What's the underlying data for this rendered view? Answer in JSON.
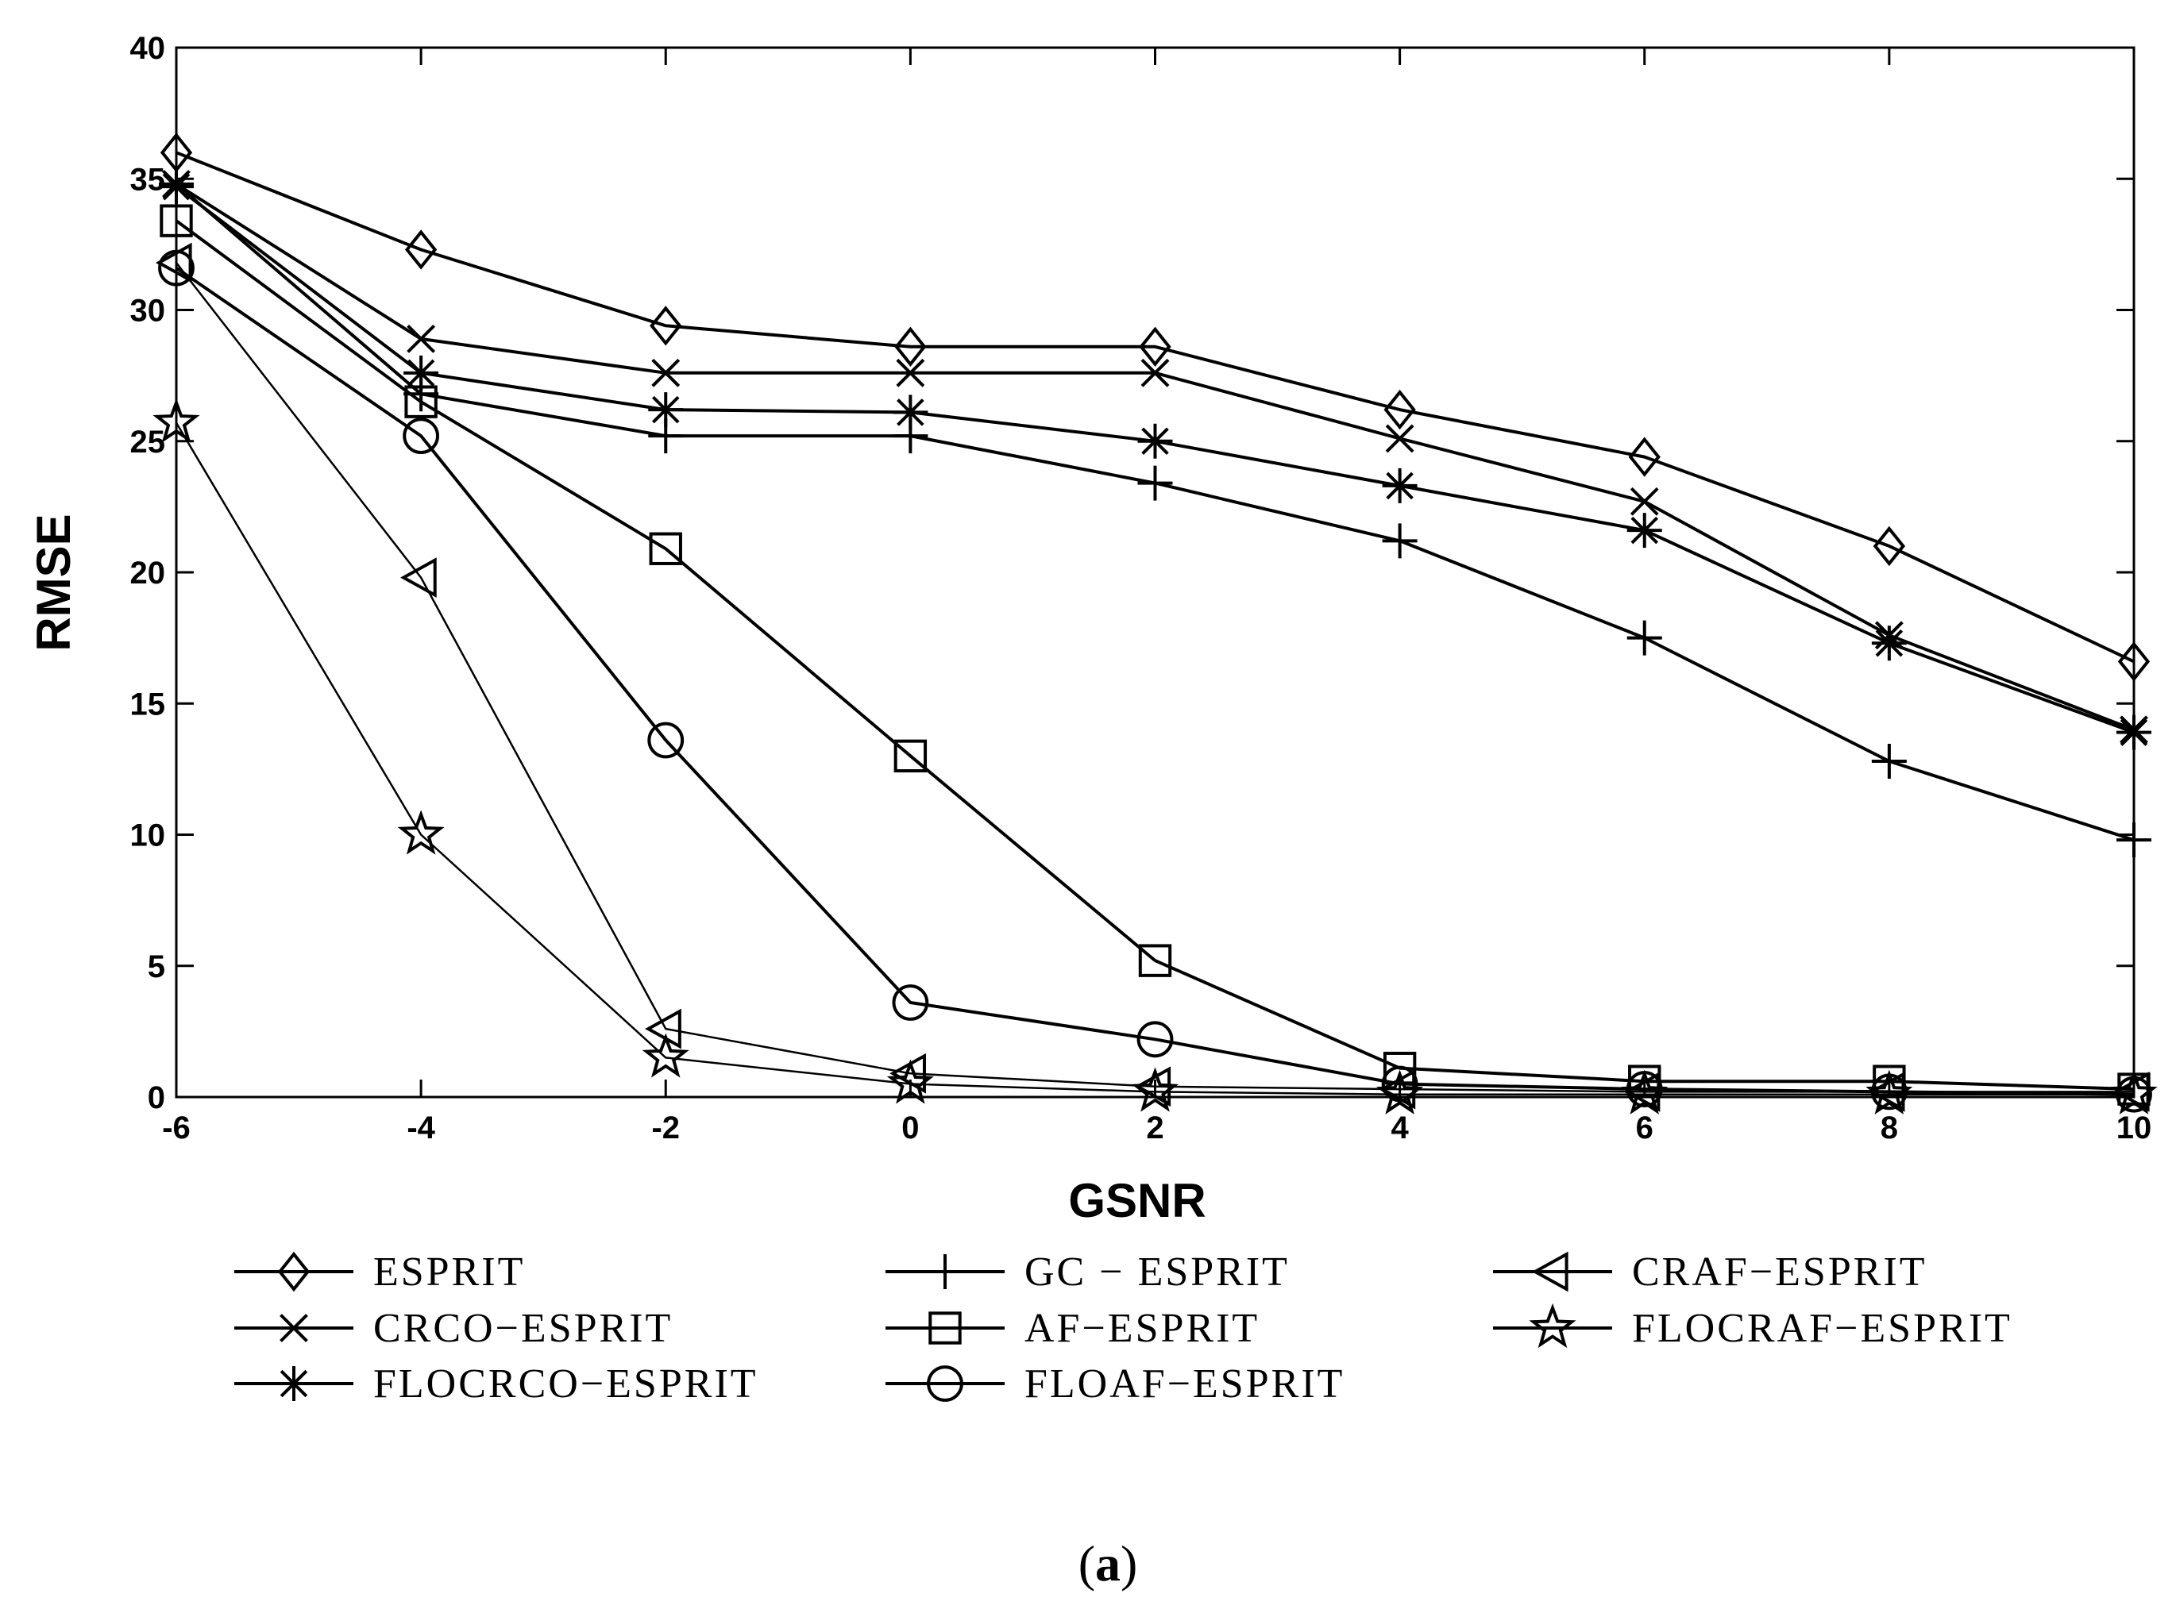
{
  "chart_data": {
    "type": "line",
    "title": "",
    "xlabel": "GSNR",
    "ylabel": "RMSE",
    "xlim": [
      -6,
      10
    ],
    "ylim": [
      0,
      40
    ],
    "x": [
      -6,
      -4,
      -2,
      0,
      2,
      4,
      6,
      8,
      10
    ],
    "xticks": [
      "-6",
      "-4",
      "-2",
      "0",
      "2",
      "4",
      "6",
      "8",
      "10"
    ],
    "yticks": [
      "0",
      "5",
      "10",
      "15",
      "20",
      "25",
      "30",
      "35",
      "40"
    ],
    "grid": false,
    "legend_position": "bottom",
    "series": [
      {
        "name": "ESPRIT",
        "marker": "diamond",
        "values": [
          36.0,
          32.3,
          29.4,
          28.6,
          28.6,
          26.2,
          24.4,
          21.0,
          16.6
        ]
      },
      {
        "name": "GC − ESPRIT",
        "marker": "plus",
        "values": [
          34.8,
          26.8,
          25.2,
          25.2,
          23.4,
          21.2,
          17.5,
          12.8,
          9.8
        ]
      },
      {
        "name": "CRAF−ESPRIT",
        "marker": "triangle-left",
        "values": [
          31.8,
          19.8,
          2.6,
          0.9,
          0.4,
          0.3,
          0.2,
          0.2,
          0.2
        ]
      },
      {
        "name": "CRCO−ESPRIT",
        "marker": "x",
        "values": [
          34.8,
          28.9,
          27.6,
          27.6,
          27.6,
          25.1,
          22.7,
          17.6,
          14.0
        ]
      },
      {
        "name": "AF−ESPRIT",
        "marker": "square",
        "values": [
          33.4,
          26.5,
          20.9,
          13.0,
          5.2,
          1.1,
          0.6,
          0.6,
          0.3
        ]
      },
      {
        "name": "FLOCRAF−ESPRIT",
        "marker": "star",
        "values": [
          25.7,
          10.0,
          1.5,
          0.5,
          0.2,
          0.1,
          0.1,
          0.1,
          0.1
        ]
      },
      {
        "name": "FLOCRCO−ESPRIT",
        "marker": "asterisk",
        "values": [
          34.7,
          27.6,
          26.2,
          26.1,
          25.0,
          23.3,
          21.6,
          17.3,
          13.9
        ]
      },
      {
        "name": "FLOAF−ESPRIT",
        "marker": "circle",
        "values": [
          31.6,
          25.2,
          13.6,
          3.6,
          2.2,
          0.5,
          0.3,
          0.2,
          0.1
        ]
      }
    ]
  },
  "caption": {
    "open": "(",
    "label": "a",
    "close": ")"
  }
}
